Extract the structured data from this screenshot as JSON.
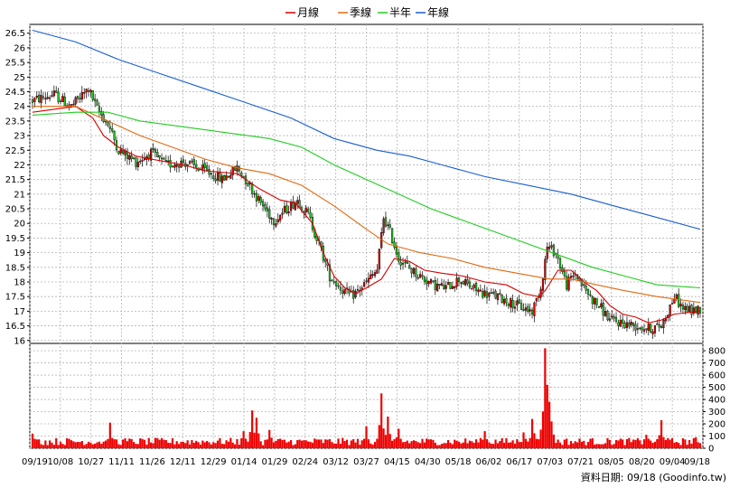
{
  "chart_data": {
    "type": "candlestick",
    "legend": [
      {
        "name": "月線",
        "color": "#d40000"
      },
      {
        "name": "季線",
        "color": "#e06a10"
      },
      {
        "name": "半年",
        "color": "#22cc22"
      },
      {
        "name": "年線",
        "color": "#1a5fd0"
      }
    ],
    "legend_position": "top-center",
    "grid": true,
    "price_axis": {
      "ylim": [
        15.9,
        26.8
      ],
      "ticks": [
        "16",
        "16.5",
        "17",
        "17.5",
        "18",
        "18.5",
        "19",
        "19.5",
        "20",
        "20.5",
        "21",
        "21.5",
        "22",
        "22.5",
        "23",
        "23.5",
        "24",
        "24.5",
        "25",
        "25.5",
        "26",
        "26.5"
      ]
    },
    "volume_axis": {
      "ylim": [
        0,
        860
      ],
      "ticks": [
        "0",
        "100",
        "200",
        "300",
        "400",
        "500",
        "600",
        "700",
        "800"
      ]
    },
    "x_axis": {
      "tick_labels": [
        "09/19",
        "10/08",
        "10/27",
        "11/11",
        "11/26",
        "12/11",
        "12/29",
        "01/14",
        "01/29",
        "02/24",
        "03/12",
        "03/27",
        "04/15",
        "04/30",
        "05/18",
        "06/02",
        "06/17",
        "07/03",
        "07/21",
        "08/05",
        "08/20",
        "09/04",
        "09/18"
      ]
    },
    "moving_averages": {
      "月線": [
        [
          0,
          23.8
        ],
        [
          10,
          23.9
        ],
        [
          20,
          24.0
        ],
        [
          28,
          23.6
        ],
        [
          33,
          23.0
        ],
        [
          40,
          22.6
        ],
        [
          48,
          22.3
        ],
        [
          55,
          22.2
        ],
        [
          70,
          22.0
        ],
        [
          80,
          21.8
        ],
        [
          95,
          21.7
        ],
        [
          105,
          21.2
        ],
        [
          115,
          20.8
        ],
        [
          122,
          20.7
        ],
        [
          130,
          20.0
        ],
        [
          135,
          19.0
        ],
        [
          140,
          18.2
        ],
        [
          145,
          17.8
        ],
        [
          150,
          17.6
        ],
        [
          155,
          17.8
        ],
        [
          162,
          18.1
        ],
        [
          168,
          18.8
        ],
        [
          175,
          18.7
        ],
        [
          182,
          18.4
        ],
        [
          190,
          18.3
        ],
        [
          200,
          18.2
        ],
        [
          210,
          18.0
        ],
        [
          220,
          17.9
        ],
        [
          228,
          17.6
        ],
        [
          235,
          17.5
        ],
        [
          238,
          17.7
        ],
        [
          244,
          18.4
        ],
        [
          250,
          18.4
        ],
        [
          256,
          18.0
        ],
        [
          262,
          17.7
        ],
        [
          268,
          17.2
        ],
        [
          274,
          16.9
        ],
        [
          280,
          16.8
        ],
        [
          286,
          16.6
        ],
        [
          292,
          16.7
        ],
        [
          298,
          16.9
        ],
        [
          304,
          16.95
        ],
        [
          310,
          17.0
        ]
      ],
      "季線": [
        [
          0,
          24.0
        ],
        [
          20,
          24.0
        ],
        [
          35,
          23.5
        ],
        [
          50,
          23.0
        ],
        [
          65,
          22.6
        ],
        [
          80,
          22.2
        ],
        [
          95,
          21.9
        ],
        [
          110,
          21.7
        ],
        [
          125,
          21.3
        ],
        [
          140,
          20.6
        ],
        [
          155,
          19.8
        ],
        [
          165,
          19.3
        ],
        [
          180,
          19.0
        ],
        [
          195,
          18.8
        ],
        [
          210,
          18.5
        ],
        [
          225,
          18.3
        ],
        [
          240,
          18.1
        ],
        [
          250,
          18.1
        ],
        [
          262,
          17.9
        ],
        [
          275,
          17.7
        ],
        [
          290,
          17.5
        ],
        [
          310,
          17.3
        ]
      ],
      "半年": [
        [
          0,
          23.7
        ],
        [
          20,
          23.8
        ],
        [
          35,
          23.8
        ],
        [
          50,
          23.5
        ],
        [
          70,
          23.3
        ],
        [
          90,
          23.1
        ],
        [
          110,
          22.9
        ],
        [
          125,
          22.6
        ],
        [
          140,
          22.0
        ],
        [
          155,
          21.5
        ],
        [
          170,
          21.0
        ],
        [
          185,
          20.5
        ],
        [
          200,
          20.1
        ],
        [
          215,
          19.7
        ],
        [
          230,
          19.3
        ],
        [
          245,
          18.9
        ],
        [
          260,
          18.5
        ],
        [
          275,
          18.2
        ],
        [
          290,
          17.9
        ],
        [
          310,
          17.8
        ]
      ],
      "年線": [
        [
          0,
          26.6
        ],
        [
          20,
          26.2
        ],
        [
          40,
          25.6
        ],
        [
          60,
          25.1
        ],
        [
          80,
          24.6
        ],
        [
          100,
          24.1
        ],
        [
          120,
          23.6
        ],
        [
          140,
          22.9
        ],
        [
          160,
          22.5
        ],
        [
          175,
          22.3
        ],
        [
          190,
          22.0
        ],
        [
          210,
          21.6
        ],
        [
          230,
          21.3
        ],
        [
          250,
          21.0
        ],
        [
          270,
          20.6
        ],
        [
          290,
          20.2
        ],
        [
          310,
          19.8
        ]
      ]
    },
    "price_path": [
      [
        0,
        24.2
      ],
      [
        10,
        24.4
      ],
      [
        18,
        24.0
      ],
      [
        26,
        24.6
      ],
      [
        30,
        23.9
      ],
      [
        35,
        23.4
      ],
      [
        40,
        22.5
      ],
      [
        48,
        22.1
      ],
      [
        55,
        22.4
      ],
      [
        62,
        22.0
      ],
      [
        70,
        22.1
      ],
      [
        80,
        21.8
      ],
      [
        88,
        21.5
      ],
      [
        95,
        21.9
      ],
      [
        100,
        21.4
      ],
      [
        105,
        20.8
      ],
      [
        112,
        20.1
      ],
      [
        118,
        20.5
      ],
      [
        123,
        20.8
      ],
      [
        128,
        20.3
      ],
      [
        133,
        19.3
      ],
      [
        138,
        18.2
      ],
      [
        143,
        17.8
      ],
      [
        148,
        17.5
      ],
      [
        154,
        17.9
      ],
      [
        160,
        18.4
      ],
      [
        163,
        20.2
      ],
      [
        166,
        19.7
      ],
      [
        170,
        18.8
      ],
      [
        176,
        18.4
      ],
      [
        180,
        18.2
      ],
      [
        186,
        17.9
      ],
      [
        192,
        17.8
      ],
      [
        198,
        18.1
      ],
      [
        204,
        17.8
      ],
      [
        210,
        17.6
      ],
      [
        216,
        17.5
      ],
      [
        222,
        17.3
      ],
      [
        228,
        17.1
      ],
      [
        232,
        17.0
      ],
      [
        236,
        17.8
      ],
      [
        239,
        19.2
      ],
      [
        243,
        19.0
      ],
      [
        248,
        17.9
      ],
      [
        252,
        18.3
      ],
      [
        256,
        17.8
      ],
      [
        260,
        17.4
      ],
      [
        264,
        17.1
      ],
      [
        268,
        16.7
      ],
      [
        274,
        16.6
      ],
      [
        280,
        16.5
      ],
      [
        286,
        16.4
      ],
      [
        292,
        16.5
      ],
      [
        295,
        17.0
      ],
      [
        298,
        17.5
      ],
      [
        302,
        17.1
      ],
      [
        306,
        17.0
      ],
      [
        310,
        17.1
      ]
    ],
    "volume_spikes": [
      [
        0,
        120
      ],
      [
        36,
        210
      ],
      [
        98,
        140
      ],
      [
        102,
        310
      ],
      [
        104,
        250
      ],
      [
        110,
        150
      ],
      [
        155,
        180
      ],
      [
        162,
        450
      ],
      [
        165,
        260
      ],
      [
        170,
        160
      ],
      [
        210,
        140
      ],
      [
        228,
        130
      ],
      [
        232,
        240
      ],
      [
        238,
        820
      ],
      [
        239,
        520
      ],
      [
        240,
        380
      ],
      [
        241,
        220
      ],
      [
        285,
        110
      ],
      [
        292,
        230
      ],
      [
        308,
        90
      ]
    ],
    "source": "資料日期: 09/18 (Goodinfo.tw)"
  }
}
